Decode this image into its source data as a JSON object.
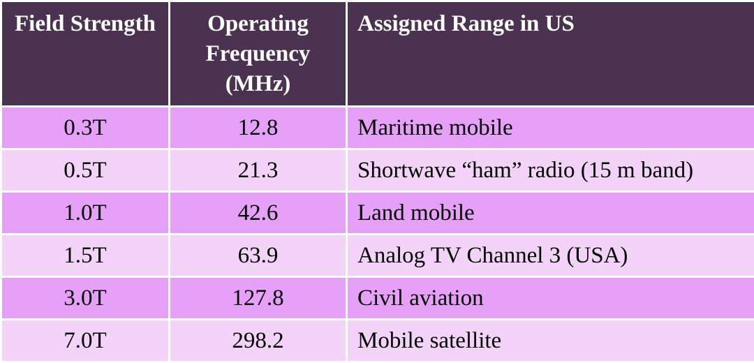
{
  "header": {
    "field_strength": "Field Strength",
    "operating_frequency": "Operating Frequency (MHz)",
    "assigned_range": "Assigned Range in US"
  },
  "rows": [
    {
      "field": "0.3T",
      "freq": "12.8",
      "range": "Maritime mobile"
    },
    {
      "field": "0.5T",
      "freq": "21.3",
      "range": "Shortwave “ham” radio (15 m band)"
    },
    {
      "field": "1.0T",
      "freq": "42.6",
      "range": "Land mobile"
    },
    {
      "field": "1.5T",
      "freq": "63.9",
      "range": "Analog TV Channel 3 (USA)"
    },
    {
      "field": "3.0T",
      "freq": "127.8",
      "range": "Civil aviation"
    },
    {
      "field": "7.0T",
      "freq": "298.2",
      "range": "Mobile satellite"
    }
  ],
  "colors": {
    "header_bg": "#4a3250",
    "row_dark": "#e7a0f7",
    "row_light": "#f3d3f7"
  }
}
